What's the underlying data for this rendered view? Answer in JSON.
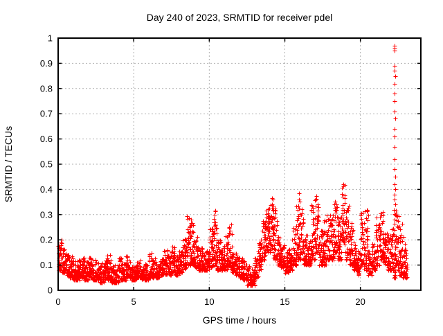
{
  "chart_data": {
    "type": "scatter",
    "title": "Day 240 of 2023, SRMTID for receiver pdel",
    "xlabel": "GPS time / hours",
    "ylabel": "SRMTID / TECUs",
    "xlim": [
      0,
      24
    ],
    "ylim": [
      0,
      1
    ],
    "xticks": [
      0,
      5,
      10,
      15,
      20
    ],
    "yticks": [
      0,
      0.1,
      0.2,
      0.3,
      0.4,
      0.5,
      0.6,
      0.7,
      0.8,
      0.9,
      1
    ],
    "grid": true,
    "legend": "none",
    "marker": "plus",
    "marker_color": "#ff0000",
    "grid_color": "#b0b0b0",
    "border_color": "#000000",
    "envelope_bins_format": [
      "t_start_hours",
      "t_end_hours",
      "n_points",
      "y_min_TECUs",
      "y_max_TECUs"
    ],
    "envelope_bins": [
      [
        0.0,
        0.25,
        34,
        0.08,
        0.2
      ],
      [
        0.25,
        0.5,
        34,
        0.07,
        0.17
      ],
      [
        0.5,
        0.75,
        34,
        0.06,
        0.15
      ],
      [
        0.75,
        1.0,
        34,
        0.05,
        0.14
      ],
      [
        1.0,
        1.25,
        34,
        0.04,
        0.13
      ],
      [
        1.25,
        1.5,
        34,
        0.04,
        0.12
      ],
      [
        1.5,
        1.75,
        34,
        0.05,
        0.13
      ],
      [
        1.75,
        2.0,
        34,
        0.04,
        0.12
      ],
      [
        2.0,
        2.25,
        34,
        0.05,
        0.13
      ],
      [
        2.25,
        2.5,
        34,
        0.04,
        0.12
      ],
      [
        2.5,
        2.75,
        34,
        0.04,
        0.11
      ],
      [
        2.75,
        3.0,
        34,
        0.03,
        0.11
      ],
      [
        3.0,
        3.25,
        34,
        0.04,
        0.12
      ],
      [
        3.25,
        3.5,
        34,
        0.04,
        0.14
      ],
      [
        3.5,
        3.75,
        34,
        0.03,
        0.1
      ],
      [
        3.75,
        4.0,
        34,
        0.03,
        0.1
      ],
      [
        4.0,
        4.25,
        34,
        0.04,
        0.13
      ],
      [
        4.25,
        4.5,
        34,
        0.04,
        0.11
      ],
      [
        4.5,
        4.75,
        34,
        0.05,
        0.14
      ],
      [
        4.75,
        5.0,
        34,
        0.04,
        0.1
      ],
      [
        5.0,
        5.25,
        34,
        0.04,
        0.11
      ],
      [
        5.25,
        5.5,
        34,
        0.05,
        0.12
      ],
      [
        5.5,
        5.75,
        34,
        0.04,
        0.1
      ],
      [
        5.75,
        6.0,
        34,
        0.04,
        0.11
      ],
      [
        6.0,
        6.25,
        34,
        0.05,
        0.15
      ],
      [
        6.25,
        6.5,
        34,
        0.05,
        0.13
      ],
      [
        6.5,
        6.75,
        34,
        0.05,
        0.12
      ],
      [
        6.75,
        7.0,
        34,
        0.06,
        0.13
      ],
      [
        7.0,
        7.25,
        34,
        0.06,
        0.16
      ],
      [
        7.25,
        7.5,
        34,
        0.06,
        0.14
      ],
      [
        7.5,
        7.75,
        34,
        0.07,
        0.18
      ],
      [
        7.75,
        8.0,
        34,
        0.06,
        0.14
      ],
      [
        8.0,
        8.25,
        34,
        0.07,
        0.18
      ],
      [
        8.25,
        8.5,
        36,
        0.08,
        0.22
      ],
      [
        8.5,
        8.75,
        38,
        0.1,
        0.3
      ],
      [
        8.75,
        9.0,
        38,
        0.1,
        0.28
      ],
      [
        9.0,
        9.25,
        35,
        0.09,
        0.22
      ],
      [
        9.25,
        9.5,
        34,
        0.08,
        0.18
      ],
      [
        9.5,
        9.75,
        34,
        0.08,
        0.17
      ],
      [
        9.75,
        10.0,
        34,
        0.08,
        0.16
      ],
      [
        10.0,
        10.25,
        36,
        0.09,
        0.26
      ],
      [
        10.25,
        10.5,
        38,
        0.1,
        0.32
      ],
      [
        10.5,
        10.75,
        35,
        0.08,
        0.2
      ],
      [
        10.75,
        11.0,
        34,
        0.08,
        0.18
      ],
      [
        11.0,
        11.25,
        35,
        0.08,
        0.22
      ],
      [
        11.25,
        11.5,
        35,
        0.09,
        0.28
      ],
      [
        11.5,
        11.75,
        34,
        0.07,
        0.16
      ],
      [
        11.75,
        12.0,
        34,
        0.06,
        0.15
      ],
      [
        12.0,
        12.25,
        34,
        0.05,
        0.13
      ],
      [
        12.25,
        12.5,
        34,
        0.04,
        0.12
      ],
      [
        12.5,
        12.75,
        32,
        0.02,
        0.1
      ],
      [
        12.75,
        13.0,
        32,
        0.02,
        0.09
      ],
      [
        13.0,
        13.25,
        33,
        0.05,
        0.13
      ],
      [
        13.25,
        13.5,
        35,
        0.08,
        0.2
      ],
      [
        13.5,
        13.75,
        37,
        0.12,
        0.28
      ],
      [
        13.75,
        14.0,
        38,
        0.15,
        0.35
      ],
      [
        14.0,
        14.25,
        38,
        0.15,
        0.37
      ],
      [
        14.25,
        14.5,
        37,
        0.12,
        0.33
      ],
      [
        14.5,
        14.75,
        35,
        0.1,
        0.22
      ],
      [
        14.75,
        15.0,
        34,
        0.09,
        0.18
      ],
      [
        15.0,
        15.25,
        34,
        0.07,
        0.16
      ],
      [
        15.25,
        15.5,
        34,
        0.08,
        0.18
      ],
      [
        15.5,
        15.75,
        35,
        0.1,
        0.26
      ],
      [
        15.75,
        16.0,
        37,
        0.12,
        0.4
      ],
      [
        16.0,
        16.25,
        37,
        0.12,
        0.34
      ],
      [
        16.25,
        16.5,
        35,
        0.1,
        0.22
      ],
      [
        16.5,
        16.75,
        34,
        0.1,
        0.2
      ],
      [
        16.75,
        17.0,
        37,
        0.12,
        0.35
      ],
      [
        17.0,
        17.25,
        37,
        0.15,
        0.42
      ],
      [
        17.25,
        17.5,
        35,
        0.1,
        0.25
      ],
      [
        17.5,
        17.75,
        35,
        0.1,
        0.28
      ],
      [
        17.75,
        18.0,
        36,
        0.12,
        0.3
      ],
      [
        18.0,
        18.25,
        36,
        0.12,
        0.3
      ],
      [
        18.25,
        18.5,
        37,
        0.15,
        0.36
      ],
      [
        18.5,
        18.75,
        35,
        0.12,
        0.3
      ],
      [
        18.75,
        19.0,
        38,
        0.18,
        0.43
      ],
      [
        19.0,
        19.25,
        37,
        0.12,
        0.35
      ],
      [
        19.25,
        19.5,
        35,
        0.1,
        0.28
      ],
      [
        19.5,
        19.75,
        34,
        0.08,
        0.2
      ],
      [
        19.75,
        20.0,
        34,
        0.06,
        0.16
      ],
      [
        20.0,
        20.25,
        35,
        0.1,
        0.31
      ],
      [
        20.25,
        20.5,
        35,
        0.08,
        0.32
      ],
      [
        20.5,
        20.75,
        34,
        0.06,
        0.18
      ],
      [
        20.75,
        21.0,
        34,
        0.08,
        0.2
      ],
      [
        21.0,
        21.25,
        35,
        0.1,
        0.3
      ],
      [
        21.25,
        21.5,
        35,
        0.12,
        0.32
      ],
      [
        21.5,
        21.75,
        34,
        0.1,
        0.25
      ],
      [
        21.75,
        22.0,
        34,
        0.08,
        0.22
      ],
      [
        22.0,
        22.2,
        26,
        0.08,
        0.25
      ],
      [
        22.2,
        22.35,
        30,
        0.05,
        0.35
      ],
      [
        22.35,
        22.55,
        28,
        0.08,
        0.3
      ],
      [
        22.55,
        22.8,
        34,
        0.06,
        0.28
      ],
      [
        22.8,
        23.1,
        42,
        0.05,
        0.22
      ]
    ],
    "spike_points": [
      [
        22.27,
        0.97
      ],
      [
        22.28,
        0.96
      ],
      [
        22.26,
        0.95
      ],
      [
        22.28,
        0.89
      ],
      [
        22.27,
        0.87
      ],
      [
        22.29,
        0.85
      ],
      [
        22.27,
        0.82
      ],
      [
        22.28,
        0.78
      ],
      [
        22.27,
        0.75
      ],
      [
        22.28,
        0.71
      ],
      [
        22.29,
        0.68
      ],
      [
        22.27,
        0.64
      ],
      [
        22.28,
        0.61
      ],
      [
        22.26,
        0.57
      ],
      [
        22.28,
        0.52
      ],
      [
        22.27,
        0.48
      ],
      [
        22.29,
        0.45
      ],
      [
        22.27,
        0.42
      ],
      [
        22.3,
        0.4
      ],
      [
        22.28,
        0.38
      ],
      [
        22.26,
        0.36
      ],
      [
        22.29,
        0.34
      ],
      [
        22.31,
        0.3
      ],
      [
        22.25,
        0.28
      ]
    ]
  }
}
